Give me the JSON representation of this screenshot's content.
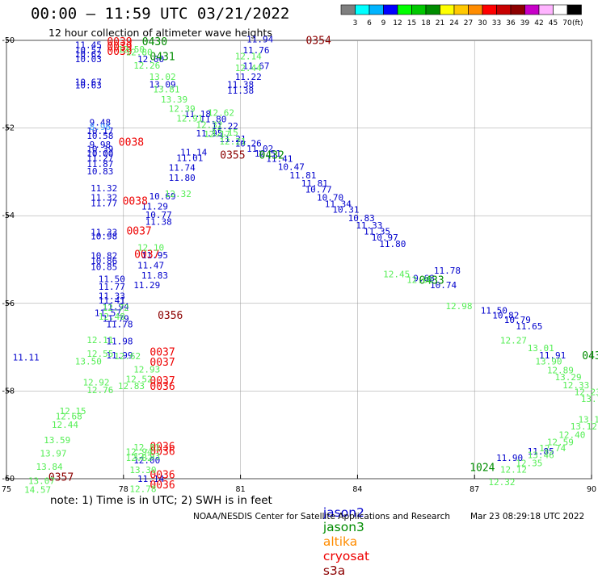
{
  "header": {
    "title": "00:00 – 11:59 UTC 03/21/2022",
    "subtitle": "12 hour collection of altimeter wave heights"
  },
  "colorbar": {
    "units": "(ft)",
    "ticks": [
      "3",
      "6",
      "9",
      "12",
      "15",
      "18",
      "21",
      "24",
      "27",
      "30",
      "33",
      "36",
      "39",
      "42",
      "45",
      "70"
    ],
    "colors": [
      "#7f7f7f",
      "#00ffff",
      "#00b4ff",
      "#0000ff",
      "#00ff00",
      "#00c800",
      "#008c00",
      "#ffff00",
      "#ffc800",
      "#ff8c00",
      "#ff0000",
      "#c80000",
      "#8c0000",
      "#c800c8",
      "#ffb4ff",
      "#ffffff",
      "#000000"
    ]
  },
  "footer": {
    "note": "note: 1) Time is in UTC; 2) SWH is in feet",
    "credit": "NOAA/NESDIS Center for Satellite Applications and Research",
    "stamp": "Mar 23 08:29:18 UTC 2022",
    "legend": [
      {
        "name": "jason2",
        "color": "#0000cc"
      },
      {
        "name": "jason3",
        "color": "#008c00"
      },
      {
        "name": "altika",
        "color": "#ff8c00"
      },
      {
        "name": "cryosat",
        "color": "#ee0000"
      },
      {
        "name": "s3a",
        "color": "#8c0000"
      }
    ]
  },
  "chart_data": {
    "type": "scatter",
    "title": "12 hour collection of altimeter wave heights",
    "units": "SWH (ft)",
    "xlim": [
      75,
      90
    ],
    "ylim": [
      -60,
      -50
    ],
    "x_ticks": [
      75,
      78,
      81,
      84,
      87,
      90
    ],
    "y_ticks": [
      -50,
      -52,
      -54,
      -56,
      -58,
      -60
    ],
    "grid": true,
    "series": [
      {
        "name": "jason2",
        "color": "#0000cc",
        "points": [
          [
            77.1,
            -50.1,
            "11.45"
          ],
          [
            77.1,
            -50.22,
            "10.57"
          ],
          [
            77.1,
            -50.31,
            "10.62"
          ],
          [
            77.1,
            -50.42,
            "10.03"
          ],
          [
            77.1,
            -50.95,
            "10.67"
          ],
          [
            77.1,
            -51.02,
            "10.63"
          ],
          [
            77.4,
            -51.87,
            "9.48"
          ],
          [
            77.4,
            -52.06,
            "10.17"
          ],
          [
            77.4,
            -52.17,
            "10.58"
          ],
          [
            77.4,
            -52.38,
            "9.98"
          ],
          [
            77.4,
            -52.48,
            "10.39"
          ],
          [
            77.4,
            -52.58,
            "10.00"
          ],
          [
            77.4,
            -52.68,
            "11.27"
          ],
          [
            77.4,
            -52.82,
            "11.87"
          ],
          [
            77.4,
            -52.98,
            "10.83"
          ],
          [
            77.5,
            -53.37,
            "11.32"
          ],
          [
            77.5,
            -53.58,
            "11.32"
          ],
          [
            77.5,
            -53.71,
            "11.77"
          ],
          [
            77.5,
            -54.37,
            "11.33"
          ],
          [
            77.5,
            -54.47,
            "10.98"
          ],
          [
            77.5,
            -54.91,
            "10.82"
          ],
          [
            77.5,
            -55.03,
            "10.86"
          ],
          [
            77.5,
            -55.17,
            "10.85"
          ],
          [
            77.7,
            -55.44,
            "11.50"
          ],
          [
            77.7,
            -55.62,
            "11.77"
          ],
          [
            77.7,
            -55.83,
            "11.33"
          ],
          [
            77.7,
            -55.93,
            "11.41"
          ],
          [
            77.8,
            -56.07,
            "11.94"
          ],
          [
            77.6,
            -56.22,
            "11.57"
          ],
          [
            77.8,
            -56.34,
            "11.79"
          ],
          [
            77.9,
            -56.47,
            "11.78"
          ],
          [
            77.9,
            -56.86,
            "11.98"
          ],
          [
            77.9,
            -57.18,
            "11.99"
          ],
          [
            75.5,
            -57.23,
            "11.11"
          ],
          [
            78.7,
            -50.42,
            "12.00"
          ],
          [
            79.0,
            -51.0,
            "13.09"
          ],
          [
            79.9,
            -51.68,
            "11.18"
          ],
          [
            80.3,
            -51.8,
            "11.80"
          ],
          [
            80.6,
            -51.95,
            "11.22"
          ],
          [
            80.2,
            -52.12,
            "11.95"
          ],
          [
            80.8,
            -52.25,
            "11.21"
          ],
          [
            81.2,
            -52.35,
            "10.26"
          ],
          [
            81.5,
            -52.47,
            "11.02"
          ],
          [
            79.8,
            -52.55,
            "11.14"
          ],
          [
            81.7,
            -52.58,
            "10.51"
          ],
          [
            79.7,
            -52.68,
            "11.01"
          ],
          [
            82.0,
            -52.7,
            "11.41"
          ],
          [
            79.5,
            -52.9,
            "11.74"
          ],
          [
            82.3,
            -52.88,
            "10.47"
          ],
          [
            79.5,
            -53.13,
            "11.80"
          ],
          [
            82.6,
            -53.08,
            "11.81"
          ],
          [
            82.9,
            -53.26,
            "11.81"
          ],
          [
            79.0,
            -53.55,
            "10.69"
          ],
          [
            83.0,
            -53.4,
            "10.77"
          ],
          [
            83.3,
            -53.58,
            "10.70"
          ],
          [
            78.8,
            -53.78,
            "11.29"
          ],
          [
            83.5,
            -53.73,
            "11.34"
          ],
          [
            83.7,
            -53.86,
            "10.31"
          ],
          [
            78.9,
            -53.98,
            "10.77"
          ],
          [
            84.1,
            -54.05,
            "10.83"
          ],
          [
            78.9,
            -54.13,
            "11.38"
          ],
          [
            84.3,
            -54.22,
            "11.33"
          ],
          [
            84.5,
            -54.36,
            "11.35"
          ],
          [
            84.7,
            -54.49,
            "10.97"
          ],
          [
            84.9,
            -54.64,
            "11.80"
          ],
          [
            78.8,
            -54.9,
            "11.95"
          ],
          [
            78.7,
            -55.13,
            "11.47"
          ],
          [
            78.8,
            -55.36,
            "11.83"
          ],
          [
            78.6,
            -55.58,
            "11.29"
          ],
          [
            86.3,
            -55.25,
            "11.78"
          ],
          [
            85.7,
            -55.42,
            "9.68"
          ],
          [
            86.2,
            -55.58,
            "10.74"
          ],
          [
            87.5,
            -56.16,
            "11.50"
          ],
          [
            87.8,
            -56.27,
            "10.82"
          ],
          [
            88.1,
            -56.37,
            "10.79"
          ],
          [
            88.4,
            -56.52,
            "11.65"
          ],
          [
            89.0,
            -57.18,
            "11.91"
          ],
          [
            88.7,
            -59.37,
            "11.85"
          ],
          [
            87.9,
            -59.52,
            "11.90"
          ],
          [
            78.6,
            -59.58,
            "12.00"
          ],
          [
            78.7,
            -60.0,
            "11.14"
          ],
          [
            81.5,
            -49.97,
            "11.94"
          ],
          [
            81.4,
            -50.22,
            "11.76"
          ],
          [
            81.4,
            -50.58,
            "11.67"
          ],
          [
            81.2,
            -50.83,
            "11.22"
          ],
          [
            81.0,
            -51.14,
            "11.38"
          ],
          [
            81.0,
            -51.0,
            "11.38"
          ]
        ]
      },
      {
        "name": "jason3",
        "color": "#008c00",
        "points": [
          [
            78.8,
            -50.04,
            "0430"
          ],
          [
            79.0,
            -50.38,
            "0431"
          ],
          [
            81.8,
            -52.62,
            "0432"
          ],
          [
            85.9,
            -55.48,
            "0433"
          ],
          [
            90.0,
            -57.2,
            "043"
          ],
          [
            87.2,
            -59.75,
            "1024"
          ]
        ]
      },
      {
        "name": "s3a",
        "color": "#8c0000",
        "points": [
          [
            83.0,
            -50.01,
            "0354"
          ],
          [
            80.8,
            -52.62,
            "0355"
          ],
          [
            79.2,
            -56.28,
            "0356"
          ],
          [
            76.4,
            -59.97,
            "0357"
          ]
        ]
      },
      {
        "name": "cryosat",
        "color": "#ee0000",
        "points": [
          [
            77.9,
            -50.04,
            "0039"
          ],
          [
            77.9,
            -50.15,
            "0039"
          ],
          [
            77.9,
            -50.26,
            "0039"
          ],
          [
            78.2,
            -52.33,
            "0038"
          ],
          [
            78.3,
            -53.67,
            "0038"
          ],
          [
            78.4,
            -54.36,
            "0037"
          ],
          [
            78.6,
            -54.89,
            "0037"
          ],
          [
            79.0,
            -57.12,
            "0037"
          ],
          [
            79.0,
            -57.35,
            "0037"
          ],
          [
            79.0,
            -57.77,
            "0037"
          ],
          [
            79.0,
            -57.9,
            "0036"
          ],
          [
            79.0,
            -59.27,
            "0036"
          ],
          [
            79.0,
            -59.38,
            "0036"
          ],
          [
            79.0,
            -59.92,
            "0036"
          ],
          [
            79.0,
            -60.15,
            "0036"
          ]
        ]
      },
      {
        "name": "jason2-light",
        "color": "#4aa8ff",
        "points": [
          [
            77.4,
            -51.97,
            "8.96"
          ]
        ]
      },
      {
        "name": "jason3-light",
        "color": "#55ee55",
        "points": [
          [
            78.2,
            -50.2,
            "12.50"
          ],
          [
            78.4,
            -50.27,
            "12.80"
          ],
          [
            78.6,
            -50.57,
            "12.26"
          ],
          [
            79.0,
            -50.83,
            "13.02"
          ],
          [
            79.1,
            -51.11,
            "13.81"
          ],
          [
            79.3,
            -51.34,
            "13.39"
          ],
          [
            79.5,
            -51.56,
            "12.39"
          ],
          [
            79.7,
            -51.78,
            "12.91"
          ],
          [
            80.5,
            -51.65,
            "12.62"
          ],
          [
            80.2,
            -51.92,
            "12.32"
          ],
          [
            80.4,
            -52.14,
            "12.17"
          ],
          [
            80.6,
            -52.1,
            "12.15"
          ],
          [
            80.8,
            -52.3,
            "12.21"
          ],
          [
            81.2,
            -50.36,
            "12.14"
          ],
          [
            81.2,
            -50.63,
            "12.44"
          ],
          [
            79.4,
            -53.5,
            "12.32"
          ],
          [
            78.7,
            -54.72,
            "12.10"
          ],
          [
            85.0,
            -55.33,
            "12.45"
          ],
          [
            85.6,
            -55.46,
            "12.06"
          ],
          [
            86.6,
            -56.06,
            "12.98"
          ],
          [
            88.0,
            -56.84,
            "12.27"
          ],
          [
            88.7,
            -57.02,
            "13.01"
          ],
          [
            88.9,
            -57.32,
            "13.90"
          ],
          [
            89.2,
            -57.52,
            "12.89"
          ],
          [
            89.4,
            -57.68,
            "13.29"
          ],
          [
            89.6,
            -57.86,
            "12.33"
          ],
          [
            89.9,
            -58.02,
            "12.23"
          ],
          [
            90.0,
            -58.18,
            "13.7"
          ],
          [
            77.8,
            -56.1,
            "12.72"
          ],
          [
            77.7,
            -56.3,
            "12.48"
          ],
          [
            77.4,
            -56.83,
            "12.11"
          ],
          [
            77.4,
            -57.15,
            "12.55"
          ],
          [
            77.1,
            -57.32,
            "13.50"
          ],
          [
            78.1,
            -57.2,
            "12.62"
          ],
          [
            77.3,
            -57.8,
            "12.92"
          ],
          [
            77.4,
            -57.97,
            "12.76"
          ],
          [
            78.6,
            -57.5,
            "12.93"
          ],
          [
            78.4,
            -57.73,
            "12.52"
          ],
          [
            78.2,
            -57.88,
            "12.83"
          ],
          [
            76.7,
            -58.45,
            "12.15"
          ],
          [
            76.6,
            -58.57,
            "12.68"
          ],
          [
            76.5,
            -58.77,
            "12.44"
          ],
          [
            76.3,
            -59.12,
            "13.59"
          ],
          [
            76.2,
            -59.42,
            "13.97"
          ],
          [
            76.1,
            -59.72,
            "13.84"
          ],
          [
            75.9,
            -60.05,
            "13.07"
          ],
          [
            75.8,
            -60.25,
            "14.57"
          ],
          [
            78.4,
            -59.38,
            "12.94"
          ],
          [
            78.4,
            -59.52,
            "12.82"
          ],
          [
            78.6,
            -59.28,
            "12.81"
          ],
          [
            78.6,
            -59.48,
            "12.93"
          ],
          [
            78.5,
            -60.23,
            "12.78"
          ],
          [
            78.5,
            -59.8,
            "13.30"
          ],
          [
            87.7,
            -60.07,
            "12.32"
          ],
          [
            88.0,
            -59.79,
            "12.12"
          ],
          [
            88.4,
            -59.64,
            "12.35"
          ],
          [
            88.7,
            -59.46,
            "13.46"
          ],
          [
            89.0,
            -59.3,
            "12.74"
          ],
          [
            89.2,
            -59.16,
            "12.59"
          ],
          [
            89.5,
            -59.0,
            "12.40"
          ],
          [
            89.8,
            -58.8,
            "13.12"
          ],
          [
            90.0,
            -58.65,
            "13.13"
          ]
        ]
      }
    ]
  }
}
